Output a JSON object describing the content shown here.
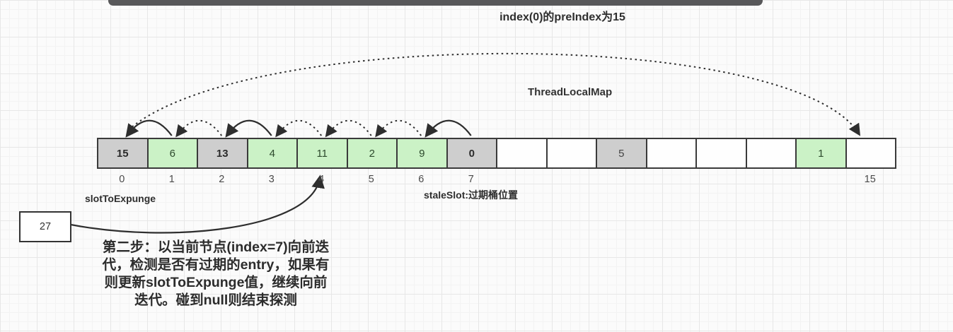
{
  "title": "index(0)的preIndex为15",
  "map_label": "ThreadLocalMap",
  "array": {
    "cells": [
      {
        "index": 0,
        "value": "15",
        "type": "stale"
      },
      {
        "index": 1,
        "value": "6",
        "type": "valid"
      },
      {
        "index": 2,
        "value": "13",
        "type": "stale"
      },
      {
        "index": 3,
        "value": "4",
        "type": "valid"
      },
      {
        "index": 4,
        "value": "11",
        "type": "valid"
      },
      {
        "index": 5,
        "value": "2",
        "type": "valid"
      },
      {
        "index": 6,
        "value": "9",
        "type": "valid"
      },
      {
        "index": 7,
        "value": "0",
        "type": "stale"
      },
      {
        "index": 8,
        "value": "",
        "type": "empty"
      },
      {
        "index": 9,
        "value": "",
        "type": "empty"
      },
      {
        "index": 10,
        "value": "5",
        "type": "gray"
      },
      {
        "index": 11,
        "value": "",
        "type": "empty"
      },
      {
        "index": 12,
        "value": "",
        "type": "empty"
      },
      {
        "index": 13,
        "value": "",
        "type": "empty"
      },
      {
        "index": 14,
        "value": "1",
        "type": "valid"
      },
      {
        "index": 15,
        "value": "",
        "type": "empty"
      }
    ],
    "index_labels": [
      "0",
      "1",
      "2",
      "3",
      "4",
      "5",
      "6",
      "7",
      "",
      "",
      "",
      "",
      "",
      "",
      "",
      "15"
    ]
  },
  "labels": {
    "slot_to_expunge": "slotToExpunge",
    "stale_slot": "staleSlot:过期桶位置",
    "box_value": "27"
  },
  "note_lines": [
    "第二步：以当前节点(index=7)向前迭",
    "代，检测是否有过期的entry，如果有",
    "则更新slotToExpunge值，继续向前",
    "迭代。碰到null则结束探测"
  ],
  "arrows": {
    "adjacent": [
      {
        "from": 1,
        "to": 0,
        "style": "solid"
      },
      {
        "from": 2,
        "to": 1,
        "style": "dotted"
      },
      {
        "from": 3,
        "to": 2,
        "style": "solid"
      },
      {
        "from": 4,
        "to": 3,
        "style": "dotted"
      },
      {
        "from": 5,
        "to": 4,
        "style": "dotted"
      },
      {
        "from": 6,
        "to": 5,
        "style": "dotted"
      },
      {
        "from": 7,
        "to": 6,
        "style": "solid"
      }
    ],
    "wrap": {
      "from": 0,
      "to": 15,
      "style": "dotted",
      "meaning": "index(0) preIndex is 15"
    },
    "pointer": {
      "from": "value-box",
      "to_index": 4
    }
  },
  "colors": {
    "valid_cell": "#cbf2c6",
    "stale_cell": "#cecece",
    "cell_border": "#3a3a3a",
    "top_bar": "#58585a",
    "text": "#2e2e2e"
  }
}
